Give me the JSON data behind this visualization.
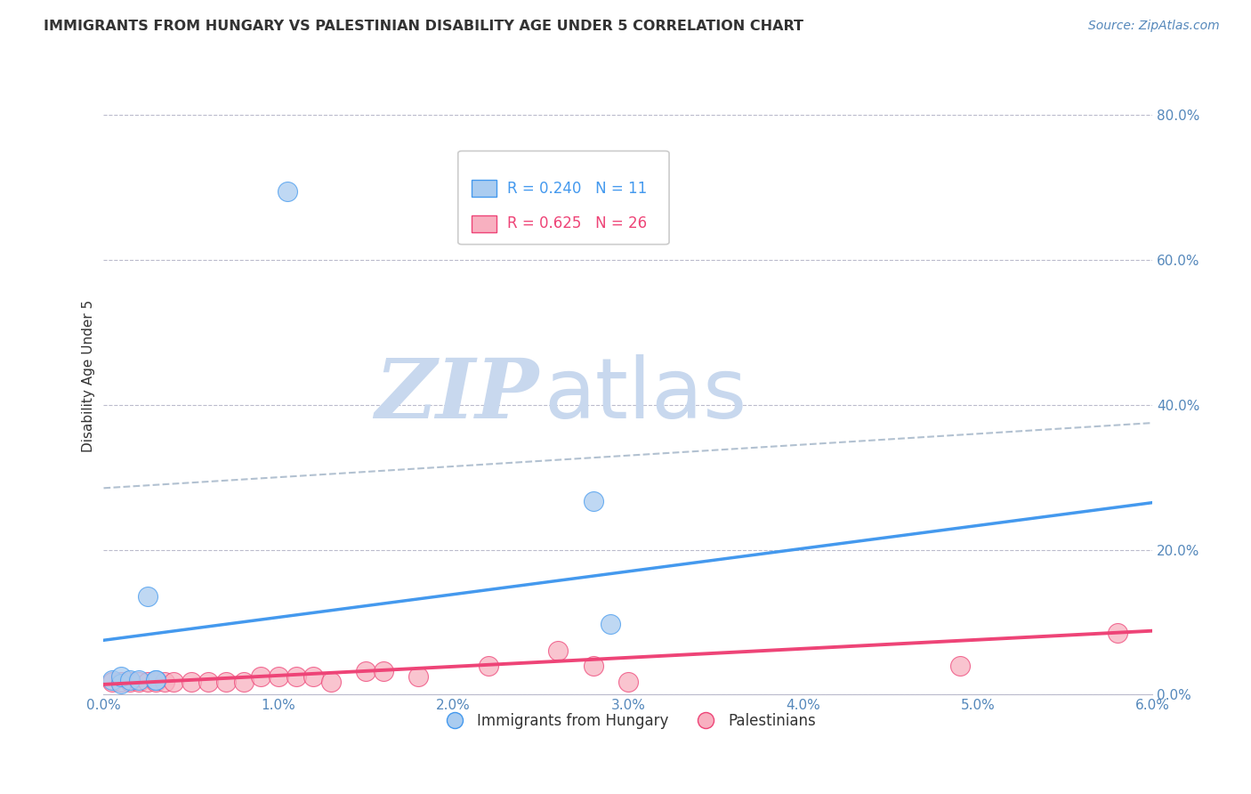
{
  "title": "IMMIGRANTS FROM HUNGARY VS PALESTINIAN DISABILITY AGE UNDER 5 CORRELATION CHART",
  "source": "Source: ZipAtlas.com",
  "ylabel": "Disability Age Under 5",
  "xlim": [
    0.0,
    0.06
  ],
  "ylim": [
    0.0,
    0.88
  ],
  "xticks": [
    0.0,
    0.01,
    0.02,
    0.03,
    0.04,
    0.05,
    0.06
  ],
  "xtick_labels": [
    "0.0%",
    "1.0%",
    "2.0%",
    "3.0%",
    "4.0%",
    "5.0%",
    "6.0%"
  ],
  "yticks": [
    0.0,
    0.2,
    0.4,
    0.6,
    0.8
  ],
  "ytick_labels": [
    "0.0%",
    "20.0%",
    "40.0%",
    "60.0%",
    "80.0%"
  ],
  "hungary_R": 0.24,
  "hungary_N": 11,
  "palestinian_R": 0.625,
  "palestinian_N": 26,
  "hungary_color": "#aaccf0",
  "hungary_line_color": "#4499ee",
  "palestinian_color": "#f8b0c0",
  "palestinian_line_color": "#ee4477",
  "legend_R_color": "#4499ee",
  "legend_R2_color": "#ee4477",
  "watermark_zip": "ZIP",
  "watermark_atlas": "atlas",
  "watermark_color_zip": "#c8d8ee",
  "watermark_color_atlas": "#c8d8ee",
  "background_color": "#ffffff",
  "grid_color": "#bbbbcc",
  "title_color": "#333333",
  "tick_color": "#5588bb",
  "hungary_points_x": [
    0.0105,
    0.0025,
    0.003,
    0.0005,
    0.001,
    0.001,
    0.0015,
    0.002,
    0.003,
    0.028,
    0.029
  ],
  "hungary_points_y": [
    0.695,
    0.135,
    0.02,
    0.02,
    0.015,
    0.025,
    0.02,
    0.02,
    0.02,
    0.267,
    0.098
  ],
  "palestinian_points_x": [
    0.0005,
    0.001,
    0.0015,
    0.002,
    0.0025,
    0.003,
    0.0035,
    0.004,
    0.005,
    0.006,
    0.007,
    0.008,
    0.009,
    0.01,
    0.011,
    0.012,
    0.013,
    0.015,
    0.016,
    0.018,
    0.022,
    0.026,
    0.028,
    0.03,
    0.049,
    0.058
  ],
  "palestinian_points_y": [
    0.018,
    0.018,
    0.018,
    0.018,
    0.018,
    0.018,
    0.018,
    0.018,
    0.018,
    0.018,
    0.018,
    0.018,
    0.025,
    0.025,
    0.025,
    0.025,
    0.018,
    0.032,
    0.032,
    0.025,
    0.04,
    0.06,
    0.04,
    0.018,
    0.04,
    0.085
  ],
  "hungary_regline_x": [
    0.0,
    0.06
  ],
  "hungary_regline_y": [
    0.075,
    0.265
  ],
  "dashed_line_x": [
    0.0,
    0.06
  ],
  "dashed_line_y": [
    0.285,
    0.375
  ],
  "dashed_line_color": "#aabbcc",
  "palestinian_regline_x": [
    0.0,
    0.06
  ],
  "palestinian_regline_y": [
    0.014,
    0.088
  ]
}
